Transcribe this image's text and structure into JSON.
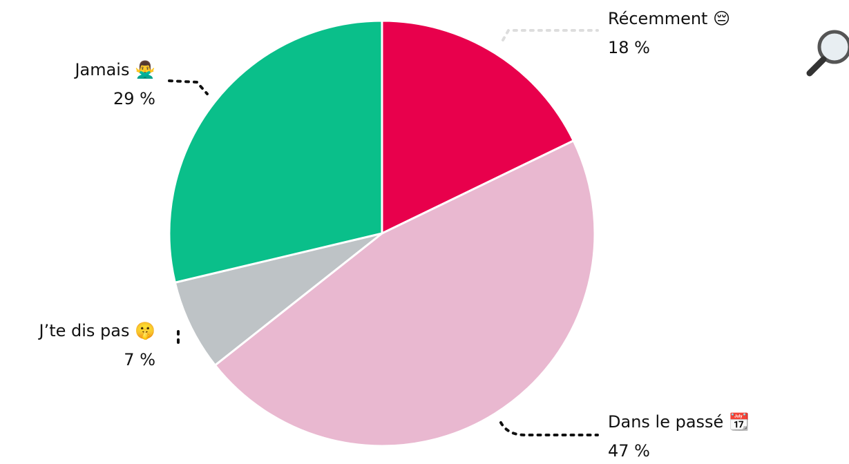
{
  "chart_data": {
    "type": "pie",
    "categories": [
      "Récemment 😔",
      "Dans le passé 📆",
      "J’te dis pas 🤫",
      "Jamais 🙅‍♂️"
    ],
    "values": [
      18,
      47,
      7,
      29
    ],
    "value_labels": [
      "18 %",
      "47 %",
      "7 %",
      "29 %"
    ],
    "colors": [
      "#e8004c",
      "#e9b8d0",
      "#bec3c6",
      "#0abf8a"
    ]
  }
}
